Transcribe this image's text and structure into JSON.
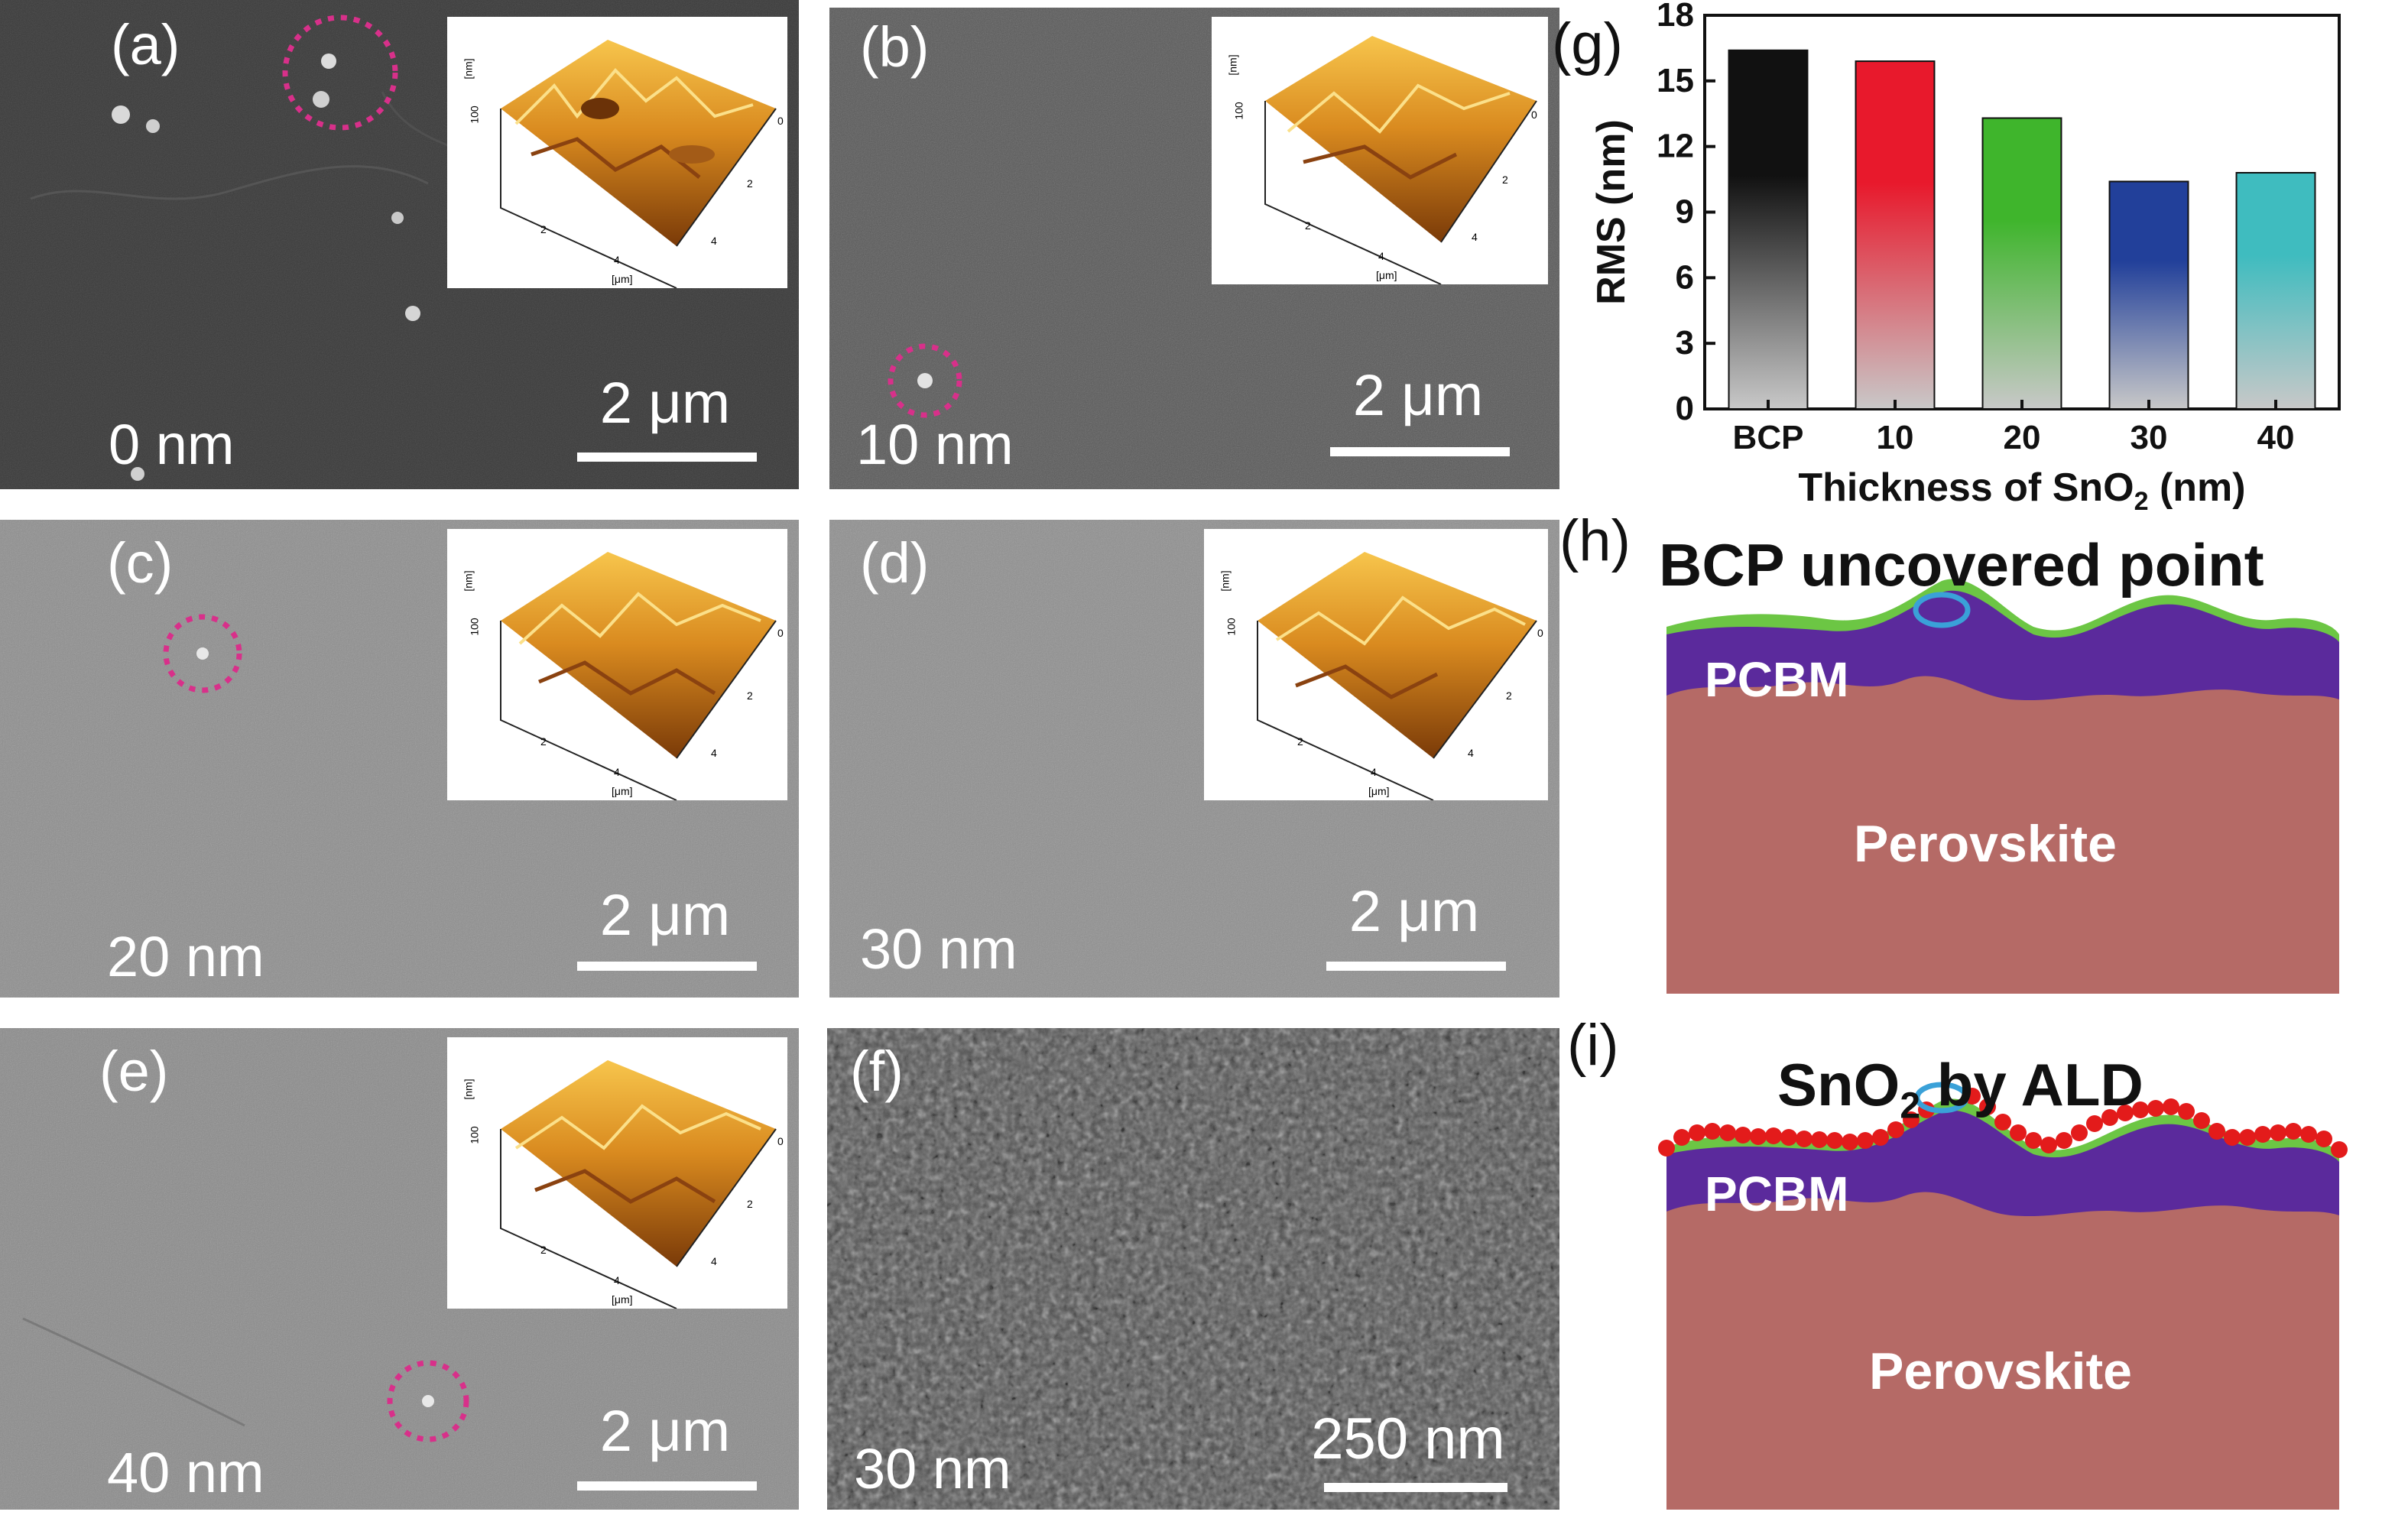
{
  "panels": [
    {
      "id": "a",
      "label": "(a)",
      "thickness": "0 nm",
      "scale": "2 μm"
    },
    {
      "id": "b",
      "label": "(b)",
      "thickness": "10 nm",
      "scale": "2 μm"
    },
    {
      "id": "c",
      "label": "(c)",
      "thickness": "20 nm",
      "scale": "2 μm"
    },
    {
      "id": "d",
      "label": "(d)",
      "thickness": "30 nm",
      "scale": "2 μm"
    },
    {
      "id": "e",
      "label": "(e)",
      "thickness": "40 nm",
      "scale": "2 μm"
    },
    {
      "id": "f",
      "label": "(f)",
      "thickness": "30 nm",
      "scale": "250 nm"
    }
  ],
  "afm_inset": {
    "z_tick": "100",
    "z_unit": "[nm]",
    "x_ticks": [
      "2",
      "4"
    ],
    "y_ticks": [
      "0",
      "2",
      "4"
    ],
    "xy_unit": "[μm]"
  },
  "chart_label": "(g)",
  "chart_data": {
    "type": "bar",
    "categories": [
      "BCP",
      "10",
      "20",
      "30",
      "40"
    ],
    "values": [
      16.4,
      15.9,
      13.3,
      10.4,
      10.8
    ],
    "xlabel": "Thickness of SnO",
    "xlabel_sub": "2",
    "xlabel_tail": " (nm)",
    "ylabel": "RMS (nm)",
    "ylim": [
      0,
      18
    ],
    "yticks": [
      "0",
      "3",
      "6",
      "9",
      "12",
      "15",
      "18"
    ],
    "grid": false,
    "colors": [
      "#111111",
      "#e8192c",
      "#3fb52c",
      "#22409a",
      "#3fbcbf"
    ]
  },
  "diagram_h": {
    "label": "(h)",
    "title": "BCP uncovered point",
    "layer1": "PCBM",
    "layer2": "Perovskite"
  },
  "diagram_i": {
    "label": "(i)",
    "title_main": "SnO",
    "title_sub": "2",
    "title_tail": " by ALD",
    "layer1": "PCBM",
    "layer2": "Perovskite"
  },
  "colors": {
    "perovskite": "#b56a66",
    "pcbm": "#5b2a9c",
    "bcp": "#6cc644",
    "sno2": "#e31b1b",
    "circle": "#3aa1d8",
    "dashed_circle": "#d8308a"
  }
}
